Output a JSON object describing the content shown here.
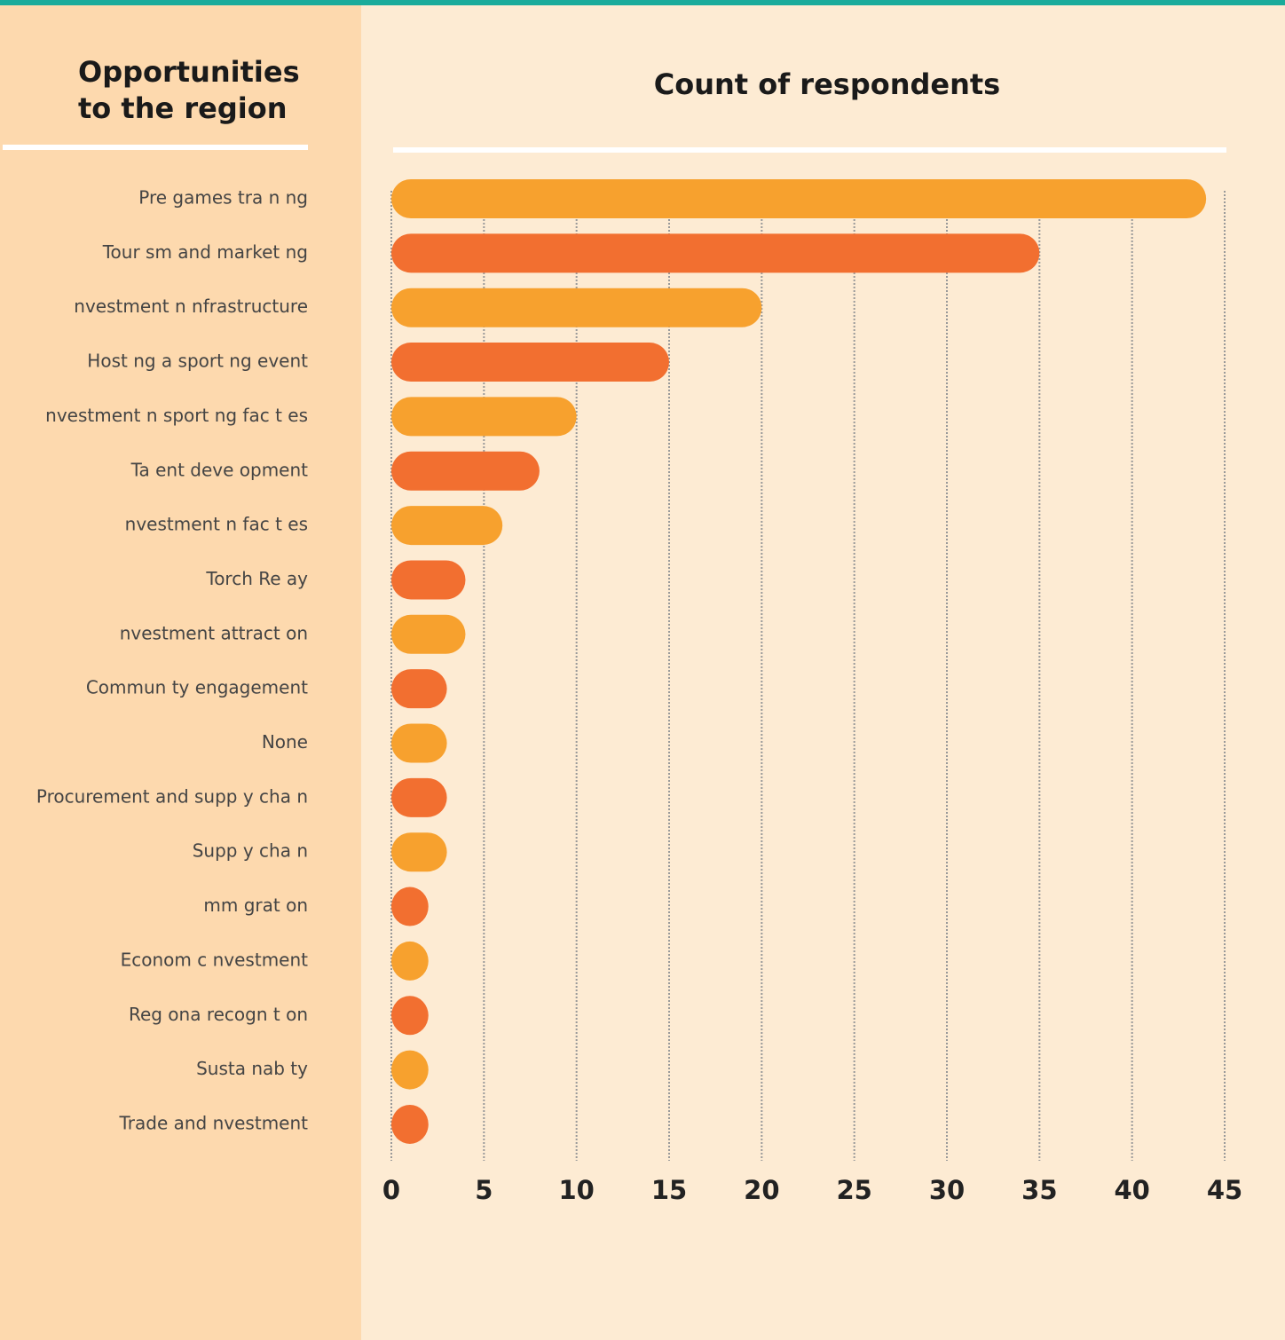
{
  "chart_data": {
    "type": "barh",
    "title": "Count of respondents",
    "ylabel": [
      "Opportunities",
      "to the region"
    ],
    "categories": [
      "Pre  games tra n ng",
      "Tour sm and market ng",
      "nvestment  n  nfrastructure",
      "Host ng a sport ng event",
      "nvestment  n sport ng fac   t es",
      "Ta ent deve opment",
      "nvestment  n fac   t es",
      "Torch Re ay",
      "nvestment attract on",
      "Commun ty engagement",
      "None",
      "Procurement and supp y cha n",
      "Supp y cha n",
      "mm grat on",
      "Econom c  nvestment",
      "Reg ona  recogn t on",
      "Susta nab   ty",
      "Trade and  nvestment"
    ],
    "values": [
      44,
      35,
      20,
      15,
      10,
      8,
      6,
      4,
      4,
      3,
      3,
      3,
      3,
      2,
      2,
      2,
      2,
      2
    ],
    "colors": [
      "#f7a12e",
      "#f26f30"
    ],
    "xlim": [
      0,
      45
    ],
    "xticks": [
      0,
      5,
      10,
      15,
      20,
      25,
      30,
      35,
      40,
      45
    ],
    "grid": true
  }
}
